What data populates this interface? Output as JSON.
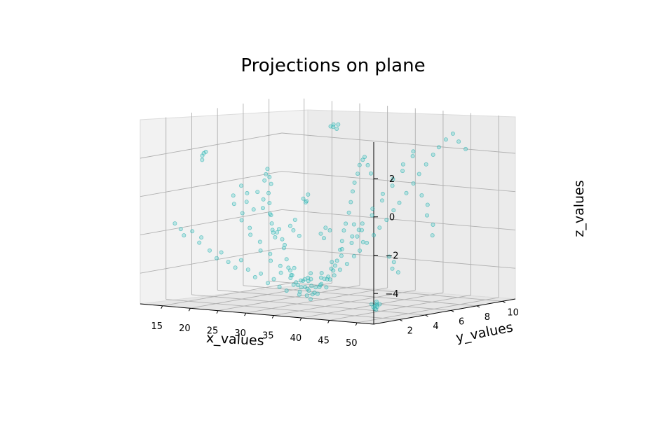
{
  "chart_data": {
    "type": "scatter",
    "projection": "3d",
    "title": "Projections on plane",
    "xlabel": "x_values",
    "ylabel": "y_values",
    "zlabel": "z_values",
    "xticks": [
      "15",
      "20",
      "25",
      "30",
      "35",
      "40",
      "45",
      "50"
    ],
    "yticks": [
      "2",
      "4",
      "6",
      "8",
      "10"
    ],
    "zticks": [
      "−4",
      "−2",
      "0",
      "2"
    ],
    "xlim": [
      11,
      53
    ],
    "ylim": [
      0,
      11
    ],
    "zlim": [
      -5.6,
      3.9
    ],
    "grid": true,
    "marker_color": "#17becf",
    "series": [
      {
        "points": [
          [
            12.3,
            9.2,
            0.1
          ],
          [
            12.5,
            9.0,
            -0.2
          ],
          [
            12.8,
            9.1,
            0.4
          ],
          [
            13.0,
            9.3,
            -0.4
          ],
          [
            13.4,
            9.0,
            0.0
          ],
          [
            13.7,
            8.8,
            -0.8
          ],
          [
            14.1,
            8.7,
            -1.3
          ],
          [
            14.6,
            8.6,
            -1.9
          ],
          [
            15.2,
            8.4,
            -2.3
          ],
          [
            15.8,
            8.2,
            -2.6
          ],
          [
            16.4,
            8.0,
            -2.7
          ],
          [
            17.2,
            7.8,
            -2.9
          ],
          [
            18.0,
            7.6,
            -2.6
          ],
          [
            18.6,
            7.5,
            -2.4
          ],
          [
            19.4,
            7.4,
            -2.9
          ],
          [
            20.4,
            7.1,
            -3.3
          ],
          [
            21.0,
            6.9,
            -3.1
          ],
          [
            21.8,
            6.7,
            -3.8
          ],
          [
            22.6,
            6.5,
            -4.2
          ],
          [
            23.4,
            6.3,
            -4.3
          ],
          [
            24.2,
            6.1,
            -4.5
          ],
          [
            24.8,
            6.0,
            -4.1
          ],
          [
            25.6,
            5.8,
            -4.8
          ],
          [
            26.4,
            5.6,
            -4.9
          ],
          [
            27.2,
            5.4,
            -5.2
          ],
          [
            28.0,
            5.3,
            -4.6
          ],
          [
            28.6,
            5.2,
            -4.9
          ],
          [
            29.4,
            5.0,
            -5.3
          ],
          [
            30.2,
            4.8,
            -5.0
          ],
          [
            31.0,
            4.6,
            -5.4
          ],
          [
            31.8,
            4.4,
            -5.1
          ],
          [
            32.6,
            4.3,
            -4.7
          ],
          [
            33.4,
            4.1,
            -5.0
          ],
          [
            34.2,
            3.9,
            -4.6
          ],
          [
            35.0,
            3.7,
            -4.4
          ],
          [
            35.8,
            3.6,
            -4.1
          ],
          [
            36.6,
            3.4,
            -4.5
          ],
          [
            37.4,
            3.2,
            -3.9
          ],
          [
            38.2,
            3.0,
            -4.0
          ],
          [
            39.0,
            2.9,
            -3.5
          ],
          [
            39.8,
            2.7,
            -3.2
          ],
          [
            40.6,
            2.5,
            -2.9
          ],
          [
            41.4,
            2.4,
            -2.3
          ],
          [
            42.2,
            2.2,
            -1.8
          ],
          [
            43.0,
            2.0,
            -1.2
          ],
          [
            43.8,
            1.8,
            -0.8
          ],
          [
            44.6,
            1.7,
            -0.2
          ],
          [
            45.4,
            1.5,
            0.4
          ],
          [
            46.2,
            1.3,
            1.0
          ],
          [
            47.0,
            1.1,
            1.5
          ],
          [
            47.8,
            1.0,
            2.0
          ],
          [
            48.6,
            0.8,
            2.5
          ],
          [
            49.4,
            0.7,
            2.8
          ],
          [
            50.2,
            0.5,
            3.0
          ],
          [
            51.0,
            0.4,
            2.6
          ],
          [
            51.8,
            0.3,
            2.2
          ],
          [
            12.6,
            2.0,
            -1.6
          ],
          [
            13.2,
            2.2,
            -1.9
          ],
          [
            14.0,
            2.1,
            -2.2
          ],
          [
            14.8,
            2.4,
            -2.0
          ],
          [
            15.6,
            2.6,
            -2.6
          ],
          [
            16.2,
            2.5,
            -2.3
          ],
          [
            17.0,
            2.8,
            -3.0
          ],
          [
            17.8,
            3.0,
            -3.4
          ],
          [
            18.4,
            3.1,
            -3.1
          ],
          [
            19.2,
            3.3,
            -3.6
          ],
          [
            20.0,
            3.5,
            -3.9
          ],
          [
            20.8,
            3.6,
            -3.5
          ],
          [
            21.6,
            3.8,
            -4.0
          ],
          [
            22.4,
            4.0,
            -4.4
          ],
          [
            23.2,
            4.1,
            -4.2
          ],
          [
            24.0,
            4.3,
            -4.7
          ],
          [
            24.6,
            4.5,
            -4.5
          ],
          [
            25.4,
            4.6,
            -4.9
          ],
          [
            26.2,
            4.8,
            -5.1
          ],
          [
            27.0,
            5.0,
            -4.8
          ],
          [
            27.8,
            5.1,
            -5.3
          ],
          [
            28.8,
            5.3,
            -5.0
          ],
          [
            29.6,
            5.5,
            -5.2
          ],
          [
            30.4,
            5.6,
            -4.8
          ],
          [
            31.2,
            5.8,
            -4.5
          ],
          [
            32.0,
            6.0,
            -4.3
          ],
          [
            32.8,
            6.1,
            -4.0
          ],
          [
            33.6,
            6.3,
            -3.7
          ],
          [
            34.4,
            6.5,
            -3.3
          ],
          [
            35.2,
            6.6,
            -3.0
          ],
          [
            36.0,
            6.8,
            -2.6
          ],
          [
            36.8,
            7.0,
            -2.2
          ],
          [
            37.6,
            7.1,
            -1.8
          ],
          [
            38.4,
            7.3,
            -1.4
          ],
          [
            39.2,
            7.5,
            -0.9
          ],
          [
            40.0,
            7.6,
            -0.5
          ],
          [
            40.8,
            7.8,
            0.0
          ],
          [
            41.6,
            8.0,
            0.5
          ],
          [
            42.4,
            8.1,
            1.0
          ],
          [
            43.2,
            8.3,
            1.5
          ],
          [
            44.0,
            8.5,
            2.0
          ],
          [
            44.8,
            8.6,
            2.4
          ],
          [
            45.6,
            8.8,
            2.8
          ],
          [
            46.4,
            9.0,
            3.1
          ],
          [
            47.2,
            9.1,
            2.7
          ],
          [
            48.0,
            9.3,
            2.3
          ],
          [
            15.0,
            5.5,
            -0.5
          ],
          [
            15.6,
            5.3,
            -0.9
          ],
          [
            16.4,
            5.6,
            -1.4
          ],
          [
            17.2,
            5.2,
            -1.7
          ],
          [
            18.2,
            5.4,
            -2.1
          ],
          [
            19.0,
            5.1,
            -2.4
          ],
          [
            19.8,
            5.5,
            -2.8
          ],
          [
            20.6,
            5.2,
            -3.2
          ],
          [
            21.4,
            5.6,
            -3.4
          ],
          [
            22.2,
            5.3,
            -3.7
          ],
          [
            23.0,
            5.7,
            -4.0
          ],
          [
            23.8,
            5.4,
            -4.3
          ],
          [
            24.6,
            5.8,
            -4.6
          ],
          [
            25.4,
            5.5,
            -4.4
          ],
          [
            26.2,
            5.9,
            -4.7
          ],
          [
            27.0,
            5.6,
            -5.0
          ],
          [
            27.8,
            6.0,
            -4.6
          ],
          [
            28.6,
            5.7,
            -4.9
          ],
          [
            29.4,
            6.1,
            -4.5
          ],
          [
            30.2,
            5.8,
            -4.2
          ],
          [
            31.0,
            6.2,
            -4.0
          ],
          [
            31.8,
            5.9,
            -3.6
          ],
          [
            32.6,
            6.3,
            -3.3
          ],
          [
            33.4,
            6.0,
            -2.9
          ],
          [
            34.2,
            6.4,
            -2.6
          ],
          [
            35.0,
            6.1,
            -2.2
          ],
          [
            35.8,
            6.5,
            -1.9
          ],
          [
            36.6,
            6.2,
            -1.5
          ],
          [
            37.4,
            6.6,
            -1.1
          ],
          [
            38.2,
            6.3,
            -0.7
          ],
          [
            39.0,
            6.7,
            -0.3
          ],
          [
            39.8,
            6.4,
            0.1
          ],
          [
            40.6,
            6.8,
            0.5
          ],
          [
            41.4,
            6.5,
            0.9
          ],
          [
            42.2,
            6.9,
            1.3
          ],
          [
            43.0,
            6.6,
            1.7
          ],
          [
            43.8,
            7.0,
            2.1
          ],
          [
            44.6,
            6.7,
            2.4
          ],
          [
            33.2,
            5.2,
            3.6
          ],
          [
            33.5,
            5.3,
            3.7
          ],
          [
            33.9,
            5.1,
            3.6
          ],
          [
            34.3,
            5.2,
            3.5
          ],
          [
            34.1,
            5.4,
            3.7
          ],
          [
            12.9,
            4.0,
            1.7
          ],
          [
            13.3,
            4.1,
            1.9
          ],
          [
            13.1,
            3.9,
            1.5
          ],
          [
            12.7,
            4.2,
            1.8
          ],
          [
            45.3,
            3.3,
            -5.3
          ],
          [
            45.7,
            3.4,
            -5.2
          ],
          [
            46.0,
            3.2,
            -5.4
          ],
          [
            45.5,
            3.5,
            -5.3
          ],
          [
            45.9,
            3.3,
            -5.1
          ],
          [
            49.6,
            1.3,
            -4.8
          ],
          [
            50.0,
            1.4,
            -4.9
          ],
          [
            50.4,
            1.2,
            -5.0
          ],
          [
            49.8,
            1.6,
            -4.7
          ],
          [
            50.6,
            1.5,
            -4.8
          ],
          [
            36.2,
            1.9,
            -3.9
          ],
          [
            36.6,
            2.0,
            -4.0
          ],
          [
            37.0,
            1.8,
            -3.8
          ],
          [
            36.8,
            2.1,
            -3.6
          ],
          [
            20.4,
            8.6,
            -0.9
          ],
          [
            20.8,
            8.8,
            -0.7
          ],
          [
            21.2,
            8.5,
            -1.0
          ],
          [
            20.6,
            8.7,
            -1.1
          ],
          [
            26.8,
            7.2,
            -2.4
          ],
          [
            27.2,
            7.4,
            -2.1
          ],
          [
            27.6,
            7.1,
            -2.6
          ],
          [
            28.2,
            7.3,
            -2.2
          ],
          [
            30.8,
            3.1,
            -1.4
          ],
          [
            31.2,
            3.3,
            -1.1
          ],
          [
            31.6,
            3.0,
            -1.6
          ],
          [
            32.2,
            3.2,
            -1.9
          ],
          [
            38.8,
            4.6,
            -1.3
          ],
          [
            39.2,
            4.8,
            -1.6
          ],
          [
            39.6,
            4.5,
            -1.9
          ],
          [
            40.2,
            4.7,
            -2.2
          ],
          [
            42.8,
            5.6,
            -3.0
          ],
          [
            43.2,
            5.8,
            -3.3
          ],
          [
            43.6,
            5.5,
            -3.6
          ],
          [
            44.2,
            5.7,
            -3.8
          ],
          [
            16.8,
            6.6,
            -0.4
          ],
          [
            17.4,
            6.8,
            -0.8
          ],
          [
            18.0,
            6.5,
            -1.2
          ],
          [
            18.8,
            6.7,
            -1.5
          ],
          [
            46.8,
            6.4,
            0.2
          ],
          [
            47.4,
            6.6,
            -0.3
          ],
          [
            48.0,
            6.3,
            -0.8
          ],
          [
            48.6,
            6.5,
            -1.3
          ],
          [
            49.2,
            6.2,
            -1.8
          ],
          [
            23.6,
            2.4,
            0.6
          ],
          [
            24.2,
            2.6,
            0.2
          ],
          [
            24.8,
            2.3,
            -0.2
          ],
          [
            25.6,
            2.5,
            -0.6
          ]
        ]
      }
    ]
  }
}
